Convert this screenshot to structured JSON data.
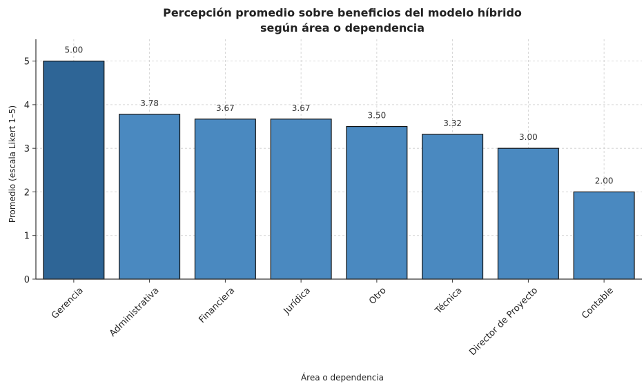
{
  "chart_data": {
    "type": "bar",
    "title": "Percepción promedio sobre beneficios del modelo híbrido",
    "subtitle": "según área o dependencia",
    "xlabel": "Área o dependencia",
    "ylabel": "Promedio (escala Likert 1–5)",
    "ylim": [
      0,
      5.5
    ],
    "yticks": [
      0,
      1,
      2,
      3,
      4,
      5
    ],
    "grid": true,
    "categories": [
      "Gerencia",
      "Administrativa",
      "Financiera",
      "Jurídica",
      "Otro",
      "Técnica",
      "Director de Proyecto",
      "Contable"
    ],
    "values": [
      5.0,
      3.78,
      3.67,
      3.67,
      3.5,
      3.32,
      3.0,
      2.0
    ],
    "value_labels": [
      "5.00",
      "3.78",
      "3.67",
      "3.67",
      "3.50",
      "3.32",
      "3.00",
      "2.00"
    ],
    "colors": {
      "highlight": "#2e6596",
      "bar": "#4a89c0",
      "edge": "#111111"
    },
    "highlight_index": 0
  }
}
